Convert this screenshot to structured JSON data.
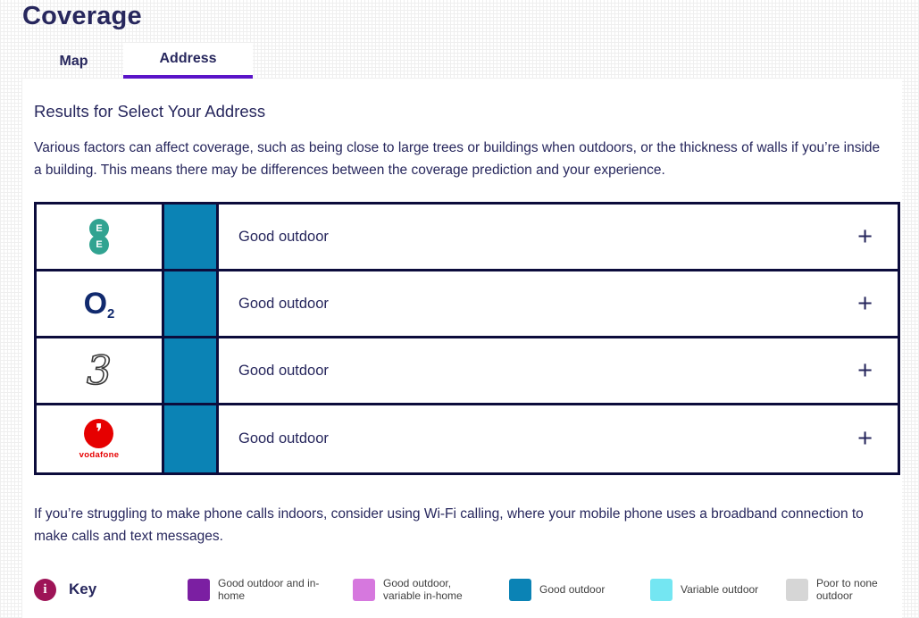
{
  "page": {
    "title": "Coverage"
  },
  "tabs": [
    {
      "label": "Map",
      "active": false
    },
    {
      "label": "Address",
      "active": true
    }
  ],
  "results": {
    "heading": "Results for Select Your Address",
    "intro": "Various factors can affect coverage, such as being close to large trees or buildings when outdoors, or the thickness of walls if you’re inside a building. This means there may be differences between the coverage prediction and your experience.",
    "wifi_note": "If you’re struggling to make phone calls indoors, consider using Wi-Fi calling, where your mobile phone uses a broadband connection to make calls and text messages."
  },
  "table": {
    "expand_label": "+"
  },
  "operators": [
    {
      "name": "EE",
      "logo": "ee",
      "logo_letter": "E",
      "status": "Good outdoor",
      "status_color": "#0b83b5"
    },
    {
      "name": "O2",
      "logo": "o2",
      "logo_text": "O",
      "logo_sub": "2",
      "status": "Good outdoor",
      "status_color": "#0b83b5"
    },
    {
      "name": "Three",
      "logo": "three",
      "logo_text": "3",
      "status": "Good outdoor",
      "status_color": "#0b83b5"
    },
    {
      "name": "Vodafone",
      "logo": "vodafone",
      "mark": "❜",
      "wordmark": "vodafone",
      "status": "Good outdoor",
      "status_color": "#0b83b5"
    }
  ],
  "key": {
    "label": "Key",
    "info_icon": "i",
    "items": [
      {
        "label": "Good outdoor and in-home",
        "color": "#7b1fa2"
      },
      {
        "label": "Good outdoor, variable in-home",
        "color": "#d678de"
      },
      {
        "label": "Good outdoor",
        "color": "#0b83b5"
      },
      {
        "label": "Variable outdoor",
        "color": "#74e6f2"
      },
      {
        "label": "Poor to none outdoor",
        "color": "#d6d6d6"
      }
    ]
  },
  "colors": {
    "accent_purple": "#5a14c8",
    "navy_text": "#27275d",
    "table_border": "#0c0c3c",
    "teal_good_outdoor": "#0b83b5",
    "key_info": "#9e1457",
    "ee_green": "#31a391",
    "o2_navy": "#112a6e",
    "vodafone_red": "#e60000",
    "legend_label": "#3f3f3f"
  }
}
